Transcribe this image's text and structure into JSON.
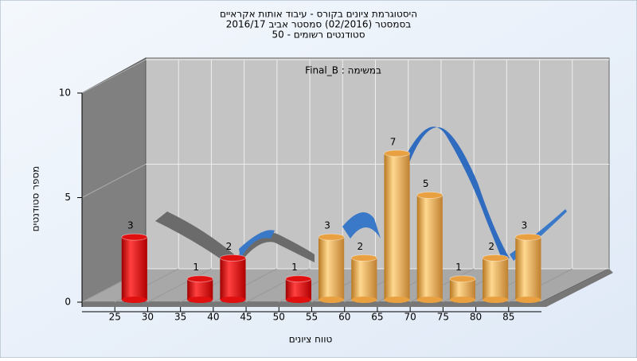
{
  "chart_data": {
    "type": "histogram",
    "title": [
      "היסטוגרמת ציונים בקורס - עיבוד אותות אקראיים",
      "בסמסטר  (02/2016)  סמסטר אביב 2016/17",
      "סטודנטים רשומים - 50"
    ],
    "subtitle": "במשימה : Final_B",
    "x_label": "טווח ציונים",
    "y_label": "מספר סטודנטים",
    "bins": [
      20,
      25,
      30,
      35,
      40,
      45,
      50,
      55,
      60,
      65,
      70,
      75,
      80,
      85,
      90
    ],
    "values": [
      0,
      3,
      0,
      1,
      2,
      0,
      1,
      3,
      2,
      7,
      5,
      1,
      2,
      3
    ],
    "colors": [
      "#e01010",
      "#e01010",
      "#e01010",
      "#e01010",
      "#e01010",
      "#e01010",
      "#e01010",
      "#e8a040",
      "#e8a040",
      "#e8a040",
      "#e8a040",
      "#e8a040",
      "#e8a040",
      "#e8a040"
    ],
    "xlim": [
      20,
      90
    ],
    "xticks": [
      25,
      30,
      35,
      40,
      45,
      50,
      55,
      60,
      65,
      70,
      75,
      80,
      85
    ],
    "ylim": [
      0,
      10
    ],
    "yticks": [
      0,
      5,
      10
    ],
    "grid": true
  }
}
